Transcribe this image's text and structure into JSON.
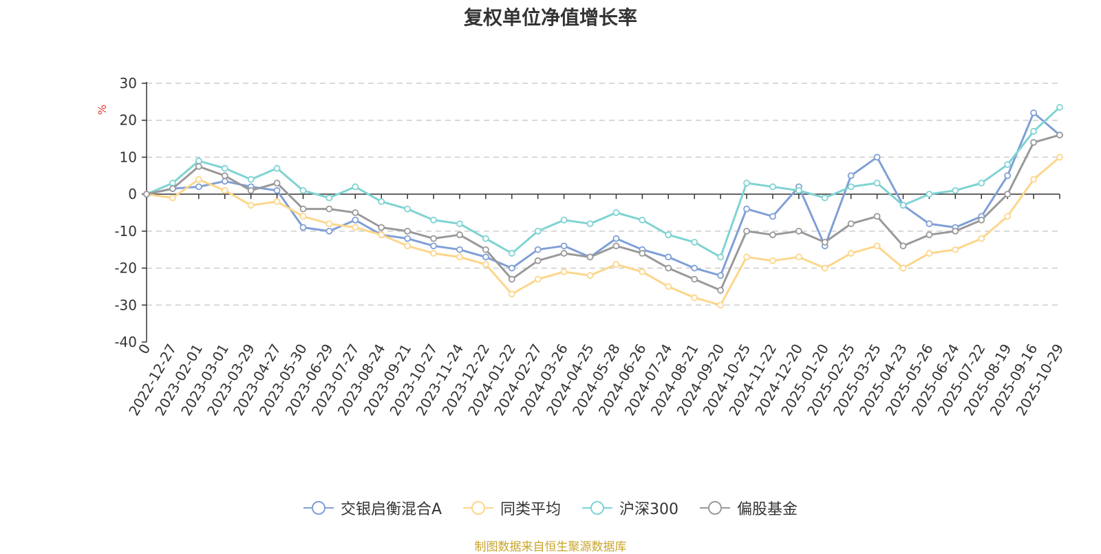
{
  "chart_data": {
    "type": "line",
    "title": "复权单位净值增长率",
    "ylabel": "%",
    "ylim": [
      -40,
      30
    ],
    "yticks": [
      30,
      20,
      10,
      0,
      -10,
      -20,
      -30,
      -40
    ],
    "x": [
      "0",
      "2022-12-27",
      "2023-02-01",
      "2023-03-01",
      "2023-03-29",
      "2023-04-27",
      "2023-05-30",
      "2023-06-29",
      "2023-07-27",
      "2023-08-24",
      "2023-09-21",
      "2023-10-27",
      "2023-11-24",
      "2023-12-22",
      "2024-01-22",
      "2024-02-27",
      "2024-03-26",
      "2024-04-25",
      "2024-05-28",
      "2024-06-26",
      "2024-07-24",
      "2024-08-21",
      "2024-09-20",
      "2024-10-25",
      "2024-11-22",
      "2024-12-20",
      "2025-01-20",
      "2025-02-25",
      "2025-03-25",
      "2025-04-23",
      "2025-05-26",
      "2025-06-24",
      "2025-07-22",
      "2025-08-19",
      "2025-09-16",
      "2025-10-29"
    ],
    "series": [
      {
        "name": "交银启衡混合A",
        "color": "#7f9fd6",
        "values": [
          0,
          1.5,
          2.0,
          3.5,
          2.0,
          1.0,
          -9.0,
          -10.0,
          -7.0,
          -11.0,
          -12.0,
          -14.0,
          -15.0,
          -17.0,
          -20.0,
          -15.0,
          -14.0,
          -17.0,
          -12.0,
          -15.0,
          -17.0,
          -20.0,
          -22.0,
          -4.0,
          -6.0,
          2.0,
          -14.0,
          5.0,
          10.0,
          -3.0,
          -8.0,
          -9.0,
          -6.0,
          5.0,
          22.0,
          16.0
        ]
      },
      {
        "name": "同类平均",
        "color": "#fcd68a",
        "values": [
          0,
          -1.0,
          4.0,
          1.0,
          -3.0,
          -2.0,
          -6.0,
          -8.0,
          -9.0,
          -11.0,
          -14.0,
          -16.0,
          -17.0,
          -19.0,
          -27.0,
          -23.0,
          -21.0,
          -22.0,
          -19.0,
          -21.0,
          -25.0,
          -28.0,
          -30.0,
          -17.0,
          -18.0,
          -17.0,
          -20.0,
          -16.0,
          -14.0,
          -20.0,
          -16.0,
          -15.0,
          -12.0,
          -6.0,
          4.0,
          10.0
        ]
      },
      {
        "name": "沪深300",
        "color": "#7fd3d3",
        "values": [
          0,
          3.0,
          9.0,
          7.0,
          4.0,
          7.0,
          1.0,
          -1.0,
          2.0,
          -2.0,
          -4.0,
          -7.0,
          -8.0,
          -12.0,
          -16.0,
          -10.0,
          -7.0,
          -8.0,
          -5.0,
          -7.0,
          -11.0,
          -13.0,
          -17.0,
          3.0,
          2.0,
          1.0,
          -1.0,
          2.0,
          3.0,
          -3.0,
          0.0,
          1.0,
          3.0,
          8.0,
          17.0,
          23.5
        ]
      },
      {
        "name": "偏股基金",
        "color": "#999999",
        "values": [
          0,
          1.5,
          7.5,
          5.0,
          1.0,
          3.0,
          -4.0,
          -4.0,
          -5.0,
          -9.0,
          -10.0,
          -12.0,
          -11.0,
          -15.0,
          -23.0,
          -18.0,
          -16.0,
          -17.0,
          -14.0,
          -16.0,
          -20.0,
          -23.0,
          -26.0,
          -10.0,
          -11.0,
          -10.0,
          -13.0,
          -8.0,
          -6.0,
          -14.0,
          -11.0,
          -10.0,
          -7.0,
          0.0,
          14.0,
          16.0
        ]
      }
    ]
  },
  "source": "制图数据来自恒生聚源数据库"
}
